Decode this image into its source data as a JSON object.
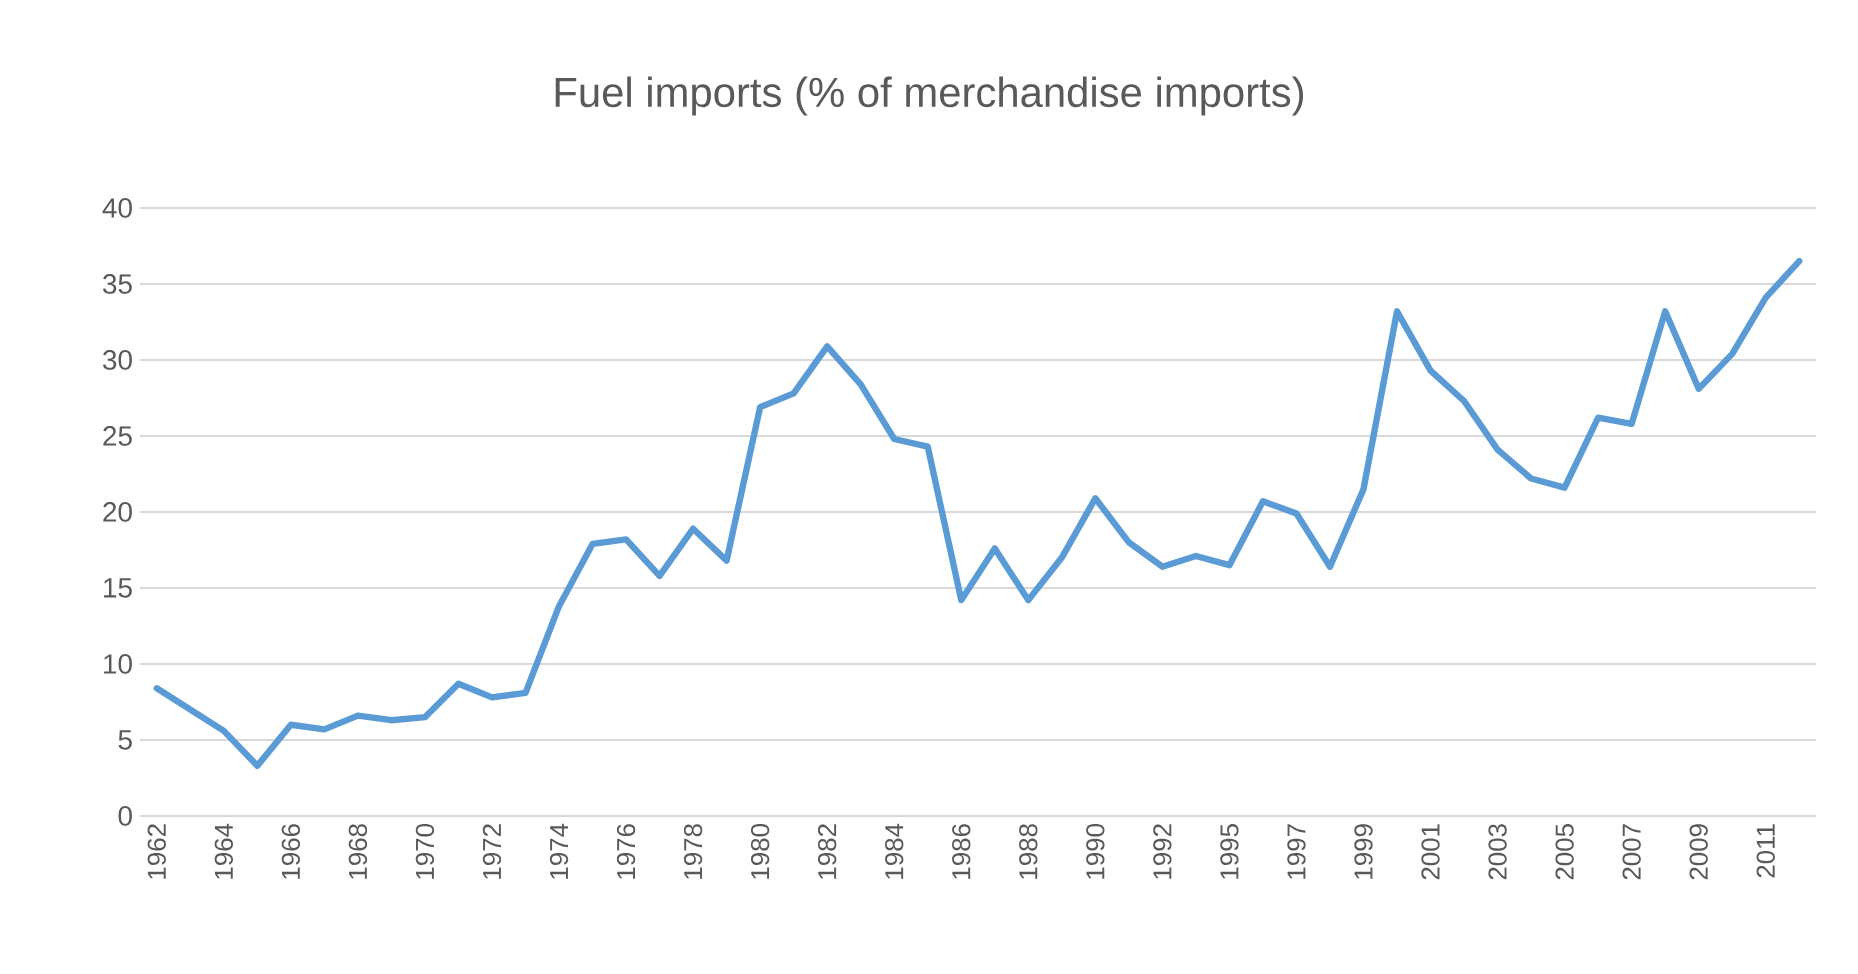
{
  "chart_data": {
    "type": "line",
    "title": "Fuel imports (% of merchandise imports)",
    "categories": [
      "1962",
      null,
      "1964",
      null,
      "1966",
      null,
      "1968",
      null,
      "1970",
      null,
      "1972",
      null,
      "1974",
      null,
      "1976",
      null,
      "1978",
      null,
      "1980",
      null,
      "1982",
      null,
      "1984",
      null,
      "1986",
      null,
      "1988",
      null,
      "1990",
      null,
      "1992",
      null,
      "1995",
      null,
      "1997",
      null,
      "1999",
      null,
      "2001",
      null,
      "2003",
      null,
      "2005",
      null,
      "2007",
      null,
      "2009",
      null,
      "2011",
      null
    ],
    "series": [
      {
        "color": "#5b9bd5",
        "values": [
          8.4,
          7.0,
          5.6,
          3.3,
          6.0,
          5.7,
          6.6,
          6.3,
          6.5,
          8.7,
          7.8,
          8.1,
          13.8,
          17.9,
          18.2,
          15.8,
          18.9,
          16.8,
          26.9,
          27.8,
          30.9,
          28.4,
          24.8,
          24.3,
          14.2,
          17.6,
          14.2,
          17.0,
          20.9,
          18.0,
          16.4,
          17.1,
          16.5,
          20.7,
          19.9,
          16.4,
          21.5,
          33.2,
          29.3,
          27.3,
          24.1,
          22.2,
          21.6,
          26.2,
          25.8,
          33.2,
          28.1,
          30.4,
          34.1,
          36.5
        ]
      }
    ],
    "ylim": [
      0,
      40
    ],
    "yticks": [
      0,
      5,
      10,
      15,
      20,
      25,
      30,
      35,
      40
    ],
    "grid": "y",
    "marker": "none",
    "line_style": "solid"
  }
}
